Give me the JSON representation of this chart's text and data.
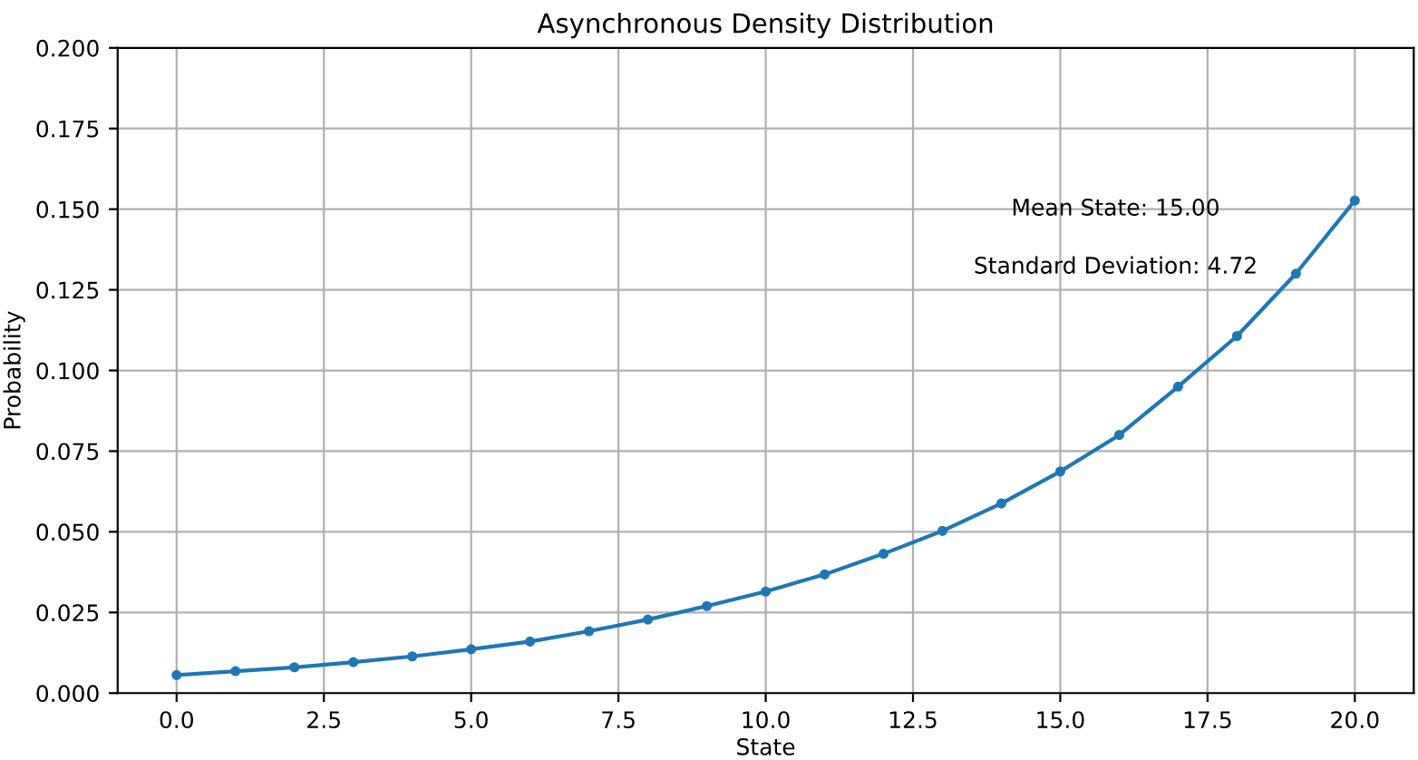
{
  "chart_data": {
    "type": "line",
    "title": "Asynchronous Density Distribution",
    "xlabel": "State",
    "ylabel": "Probability",
    "x": [
      0,
      1,
      2,
      3,
      4,
      5,
      6,
      7,
      8,
      9,
      10,
      11,
      12,
      13,
      14,
      15,
      16,
      17,
      18,
      19,
      20
    ],
    "series": [
      {
        "color": "#1f77b4",
        "values": [
          0.0056,
          0.0068,
          0.008,
          0.0096,
          0.0114,
          0.0136,
          0.016,
          0.0192,
          0.0228,
          0.027,
          0.0315,
          0.0368,
          0.0432,
          0.0503,
          0.0588,
          0.0687,
          0.08,
          0.095,
          0.1107,
          0.13,
          0.1527
        ]
      }
    ],
    "xlim": [
      -1,
      21
    ],
    "xticks": [
      {
        "value": 0,
        "label": "0.0"
      },
      {
        "value": 2.5,
        "label": "2.5"
      },
      {
        "value": 5,
        "label": "5.0"
      },
      {
        "value": 7.5,
        "label": "7.5"
      },
      {
        "value": 10,
        "label": "10.0"
      },
      {
        "value": 12.5,
        "label": "12.5"
      },
      {
        "value": 15,
        "label": "15.0"
      },
      {
        "value": 17.5,
        "label": "17.5"
      },
      {
        "value": 20,
        "label": "20.0"
      }
    ],
    "ylim": [
      0,
      0.2
    ],
    "yticks": [
      {
        "value": 0,
        "label": "0.000"
      },
      {
        "value": 0.025,
        "label": "0.025"
      },
      {
        "value": 0.05,
        "label": "0.050"
      },
      {
        "value": 0.075,
        "label": "0.075"
      },
      {
        "value": 0.1,
        "label": "0.100"
      },
      {
        "value": 0.125,
        "label": "0.125"
      },
      {
        "value": 0.15,
        "label": "0.150"
      },
      {
        "value": 0.175,
        "label": "0.175"
      },
      {
        "value": 0.2,
        "label": "0.200"
      }
    ],
    "annotations": [
      "Mean State: 15.00",
      "Standard Deviation: 4.72"
    ],
    "grid": true,
    "marker": "circle",
    "line_style": "solid"
  }
}
